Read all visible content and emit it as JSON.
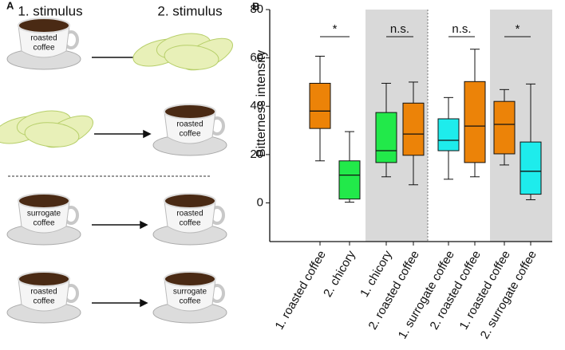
{
  "panel_a": {
    "label": "A",
    "headers": [
      "1. stimulus",
      "2. stimulus"
    ],
    "cups": [
      {
        "lines": [
          "roasted",
          "coffee"
        ]
      },
      {
        "lines": [
          "roasted",
          "coffee"
        ]
      },
      {
        "lines": [
          "surrogate",
          "coffee"
        ]
      },
      {
        "lines": [
          "roasted",
          "coffee"
        ]
      },
      {
        "lines": [
          "roasted",
          "coffee"
        ]
      },
      {
        "lines": [
          "surrogate",
          "coffee"
        ]
      }
    ]
  },
  "chart_data": {
    "type": "box",
    "panel_label": "B",
    "y_label": "Bitterness intensity",
    "categories": [
      "1. roasted coffee",
      "2. chicory",
      "1. chicory",
      "2. roasted coffee",
      "1. surrogate coffee",
      "2. roasted coffee",
      "1. roasted coffee",
      "2. surrogate coffee"
    ],
    "min": [
      17.4,
      0.3,
      10.8,
      7.5,
      9.8,
      10.8,
      15.7,
      1.3
    ],
    "q1": [
      30.8,
      1.6,
      16.7,
      19.7,
      21.6,
      16.7,
      20.3,
      3.6
    ],
    "median": [
      38,
      11.5,
      21.6,
      28.5,
      25.9,
      31.8,
      32.5,
      13.1
    ],
    "q3": [
      49.5,
      17.4,
      37.4,
      41.3,
      34.8,
      50.2,
      42,
      25.2
    ],
    "max": [
      60.7,
      29.5,
      49.5,
      50,
      43.6,
      63.6,
      46.9,
      49.2
    ],
    "colors": [
      "#ec8308",
      "#22e94a",
      "#22e94a",
      "#ec8308",
      "#1eecec",
      "#ec8308",
      "#ec8308",
      "#1eecec"
    ],
    "annotations": [
      "*",
      "n.s.",
      "n.s.",
      "*"
    ],
    "ylim": [
      -16,
      80
    ],
    "yticks": [
      0,
      20,
      40,
      60,
      80
    ]
  }
}
